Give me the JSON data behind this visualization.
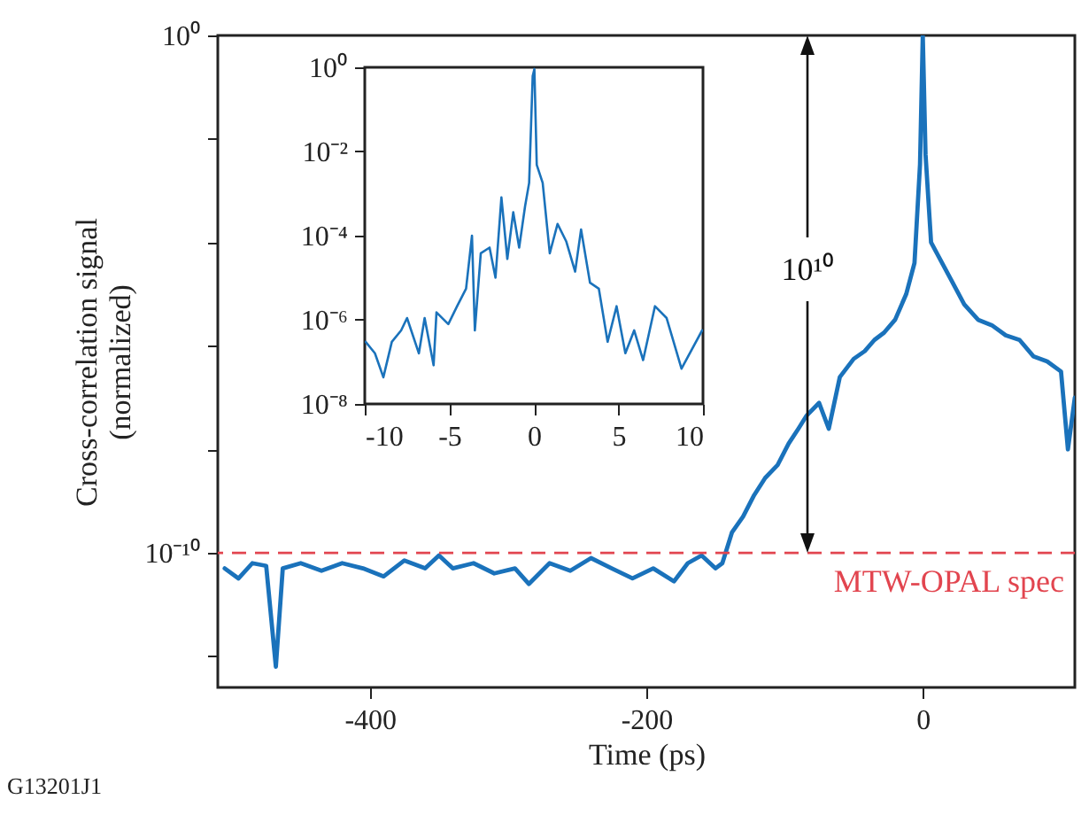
{
  "chart_data": [
    {
      "type": "line",
      "xlabel": "Time (ps)",
      "ylabel": "Cross-correlation signal\n(normalized)",
      "log": "y",
      "xlim": [
        -510,
        110
      ],
      "xticks": [
        -400,
        -200,
        0
      ],
      "ylim": [
        2.5e-13,
        1
      ],
      "yticks": [
        {
          "value": 1,
          "label": "10⁰"
        },
        {
          "value": 0.01,
          "label": null
        },
        {
          "value": 0.0001,
          "label": null
        },
        {
          "value": 1e-06,
          "label": null
        },
        {
          "value": 1e-08,
          "label": null
        },
        {
          "value": 1e-10,
          "label": "10⁻¹⁰"
        },
        {
          "value": 1e-12,
          "label": null
        }
      ],
      "x": [
        -505,
        -495,
        -485,
        -475,
        -468,
        -463,
        -450,
        -435,
        -420,
        -405,
        -390,
        -375,
        -360,
        -350,
        -340,
        -325,
        -310,
        -295,
        -285,
        -270,
        -255,
        -240,
        -225,
        -210,
        -195,
        -180,
        -170,
        -160,
        -150,
        -145,
        -138,
        -130,
        -122,
        -114,
        -105,
        -97,
        -90,
        -84,
        -75,
        -68,
        -60,
        -50,
        -42,
        -35,
        -28,
        -20,
        -12,
        -6,
        -2,
        0,
        2,
        6,
        12,
        20,
        30,
        40,
        50,
        60,
        70,
        80,
        90,
        100,
        105,
        110
      ],
      "series": [
        {
          "color": "#1a72bb",
          "values": [
            5e-11,
            3.2e-11,
            6.3e-11,
            5.6e-11,
            6.3e-13,
            5e-11,
            6.3e-11,
            4.5e-11,
            6.3e-11,
            5e-11,
            3.5e-11,
            7.1e-11,
            5e-11,
            8.9e-11,
            5e-11,
            6.3e-11,
            4e-11,
            5e-11,
            2.5e-11,
            6.3e-11,
            4.5e-11,
            7.9e-11,
            5e-11,
            3.2e-11,
            5e-11,
            2.8e-11,
            6.3e-11,
            8.9e-11,
            5e-11,
            6.3e-11,
            2.5e-10,
            5e-10,
            1.3e-09,
            2.8e-09,
            5e-09,
            1.3e-08,
            2.5e-08,
            4.5e-08,
            7.9e-08,
            2.5e-08,
            2.5e-07,
            5.6e-07,
            7.9e-07,
            1.3e-06,
            1.8e-06,
            3.2e-06,
            1e-05,
            4e-05,
            0.0032,
            1,
            0.005,
            0.0001,
            5e-05,
            2e-05,
            6.3e-06,
            3.2e-06,
            2.5e-06,
            1.6e-06,
            1.3e-06,
            6.3e-07,
            5e-07,
            3.2e-07,
            1e-08,
            1e-07
          ]
        }
      ],
      "ref_lines": [
        {
          "axis": "y",
          "value": 1e-10,
          "label": "MTW-OPAL spec",
          "color": "#e2454f",
          "line_style": "dashed"
        }
      ],
      "annotations": [
        "10¹⁰",
        "G13201J1"
      ]
    },
    {
      "type": "line",
      "log": "y",
      "xlim": [
        -10,
        10
      ],
      "xticks": [
        -10,
        -5,
        0,
        5,
        10
      ],
      "ylim": [
        1e-08,
        1
      ],
      "yticks": [
        {
          "value": 1,
          "label": "10⁰"
        },
        {
          "value": 0.01,
          "label": "10⁻²"
        },
        {
          "value": 0.0001,
          "label": "10⁻⁴"
        },
        {
          "value": 1e-06,
          "label": "10⁻⁶"
        },
        {
          "value": 1e-08,
          "label": "10⁻⁸"
        }
      ],
      "x": [
        -9.95,
        -9.4,
        -8.9,
        -8.4,
        -7.85,
        -7.5,
        -6.8,
        -6.46,
        -5.93,
        -5.76,
        -5.06,
        -4.54,
        -4.01,
        -3.66,
        -3.49,
        -3.14,
        -2.62,
        -2.27,
        -1.92,
        -1.57,
        -1.22,
        -0.87,
        -0.52,
        -0.28,
        -0.07,
        0.03,
        0.17,
        0.52,
        0.94,
        1.4,
        1.92,
        2.44,
        2.79,
        3.32,
        3.84,
        4.36,
        4.89,
        5.41,
        5.93,
        6.46,
        7.16,
        7.85,
        8.73,
        9.95
      ],
      "series": [
        {
          "color": "#1a72bb",
          "values": [
            3e-07,
            1.6e-07,
            4.3e-08,
            3e-07,
            5.6e-07,
            1.1e-06,
            1.6e-07,
            1.1e-06,
            8.3e-08,
            1.5e-06,
            7.9e-07,
            2.1e-06,
            5.5e-06,
            0.0001,
            5.6e-07,
            3.8e-05,
            5.2e-05,
            1e-05,
            0.00081,
            2.8e-05,
            0.00036,
            5.2e-05,
            0.0005,
            0.0018,
            0.62,
            0.91,
            0.0048,
            0.0018,
            3.8e-05,
            0.00019,
            7.2e-05,
            1.4e-05,
            0.00014,
            7.6e-06,
            5.5e-06,
            3e-07,
            2.1e-06,
            1.6e-07,
            5.6e-07,
            1.1e-07,
            2.1e-06,
            1.1e-06,
            6.9e-08,
            5.6e-07
          ]
        }
      ]
    }
  ]
}
